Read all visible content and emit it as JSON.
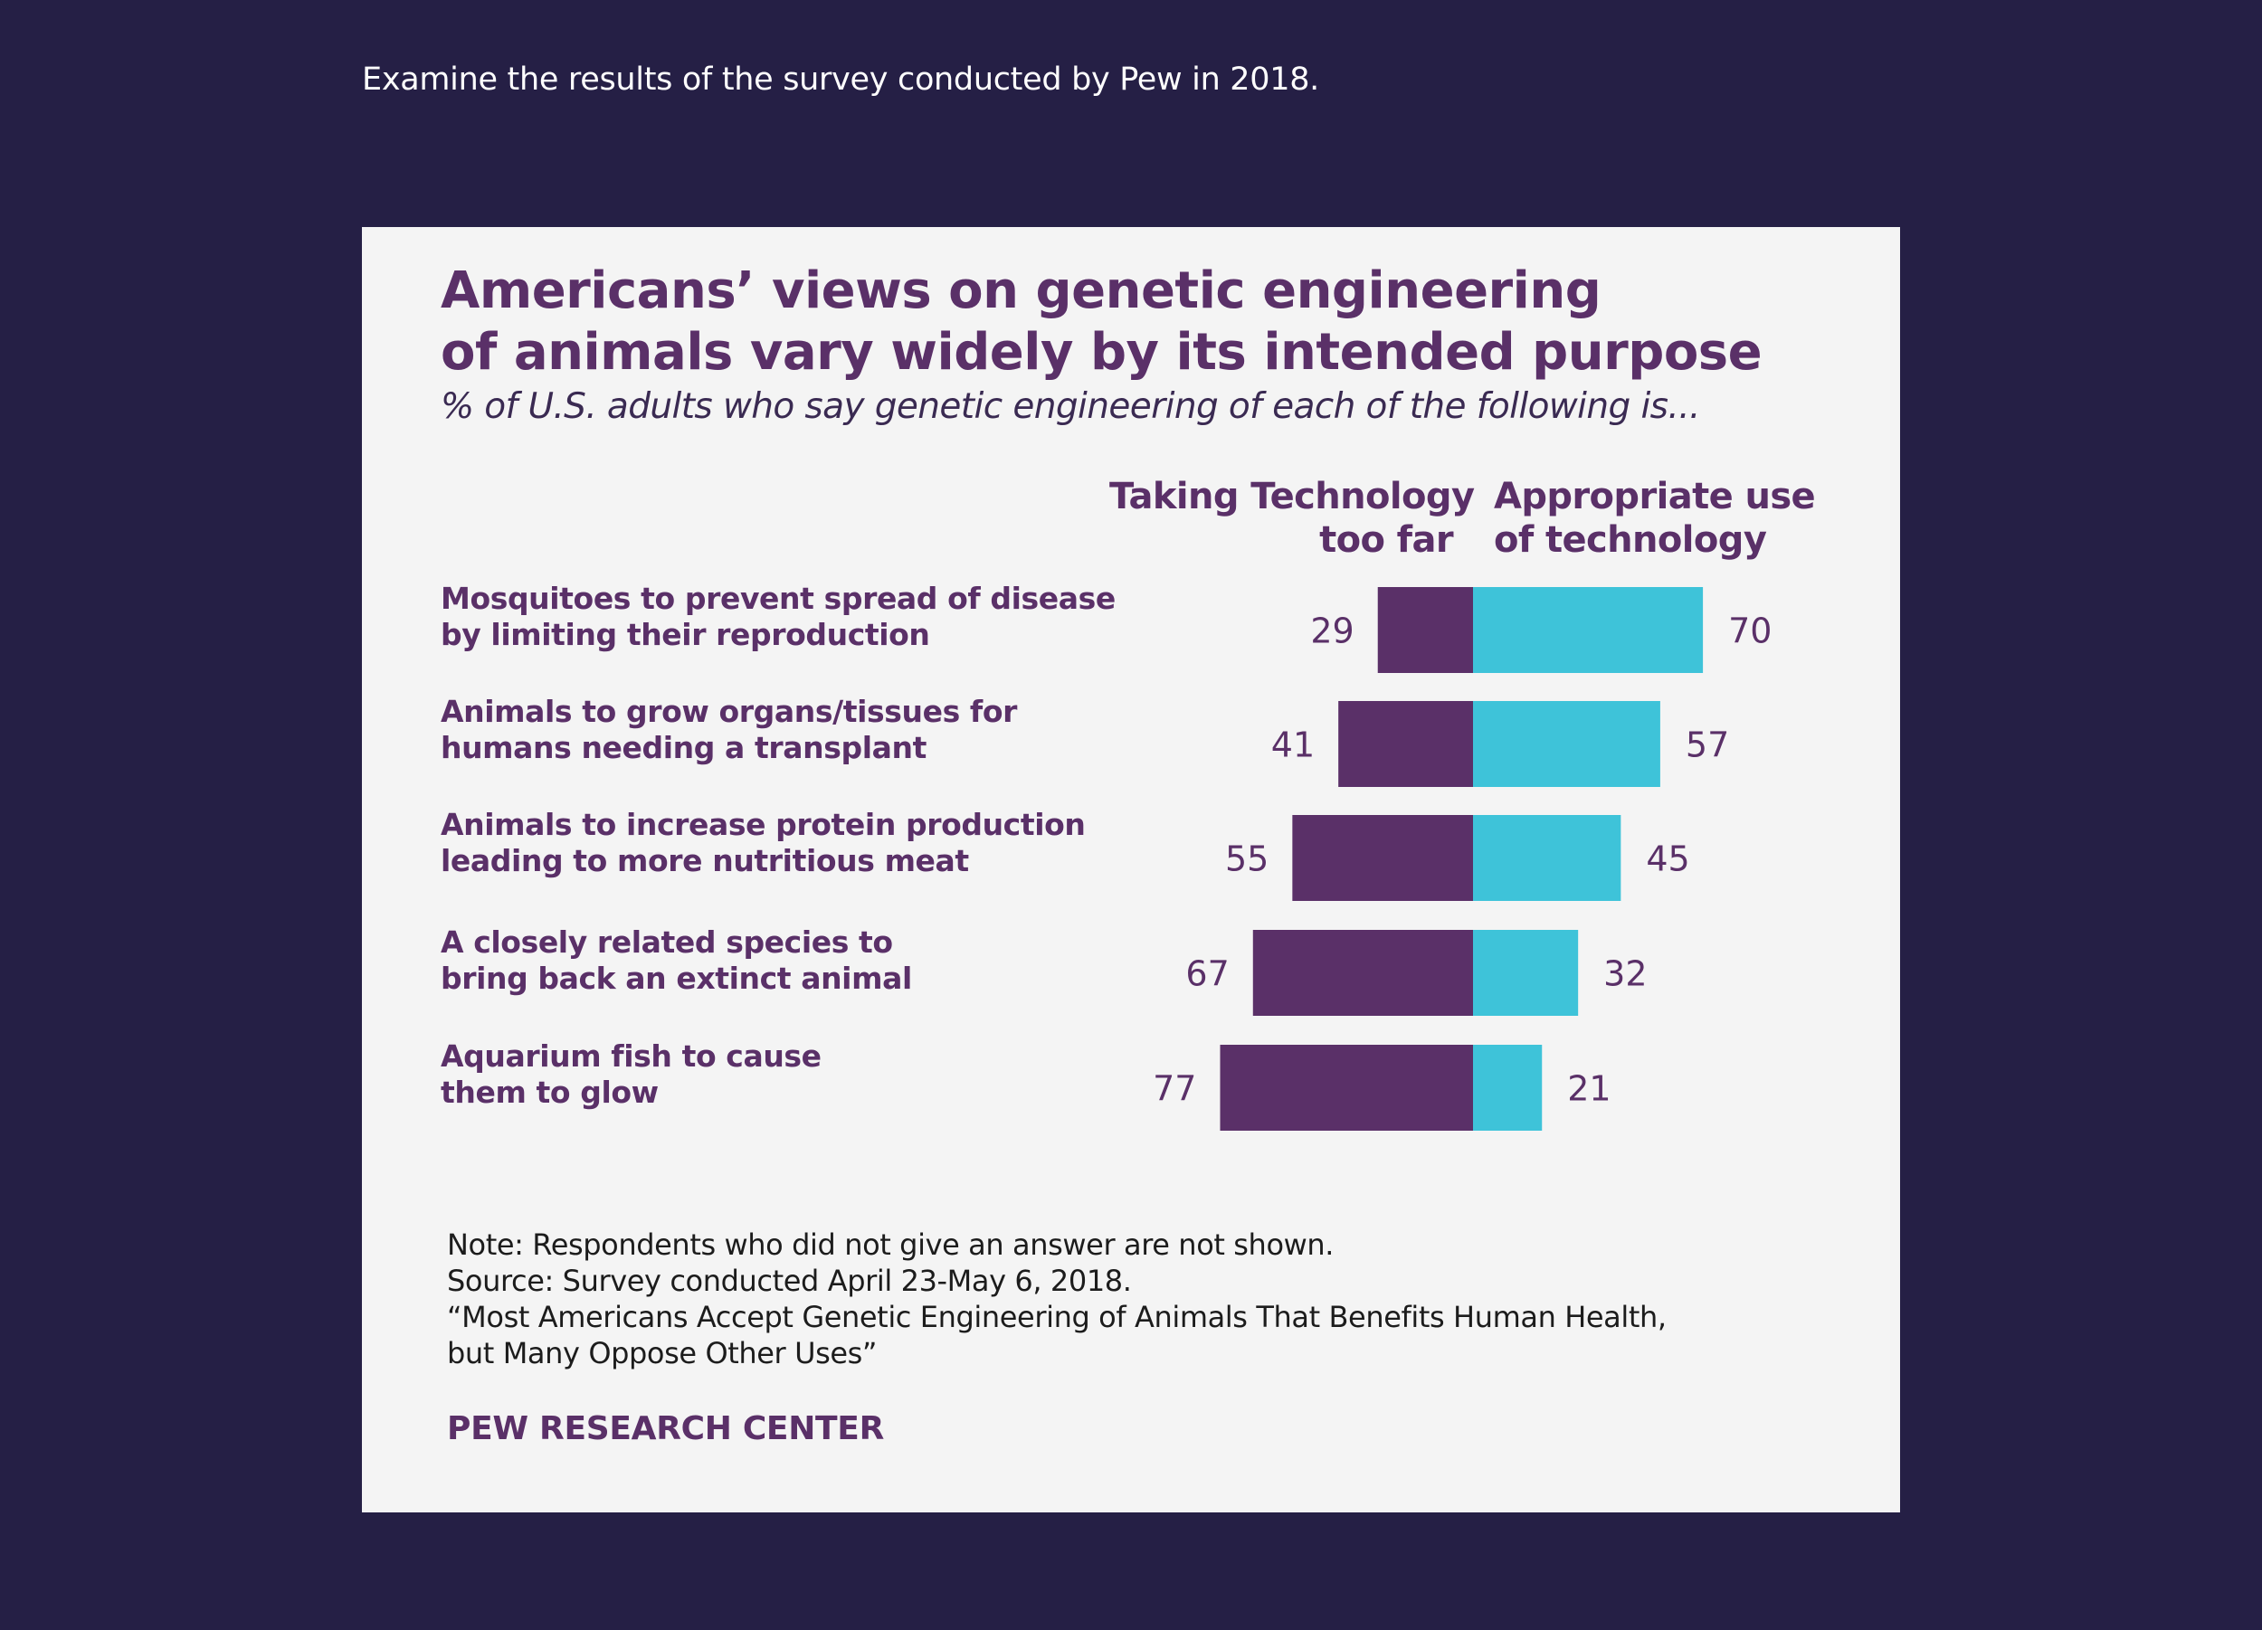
{
  "prompt": "Examine the results of the survey conducted by Pew in 2018.",
  "colors": {
    "page_bg": "#251f45",
    "card_bg": "#f4f4f4",
    "too_far": "#5a3068",
    "appropriate": "#3ec3d9",
    "text_purple": "#5a3068"
  },
  "chart_data": {
    "type": "bar",
    "orientation": "horizontal-diverging",
    "title_line1": "Americans’ views on genetic engineering",
    "title_line2": "of animals vary widely by its intended purpose",
    "subtitle": "% of U.S. adults who say genetic engineering of each of the following is...",
    "series": [
      {
        "name": "Taking Technology too far",
        "header_line1": "Taking Technology",
        "header_line2": "too far",
        "values": [
          29,
          41,
          55,
          67,
          77
        ]
      },
      {
        "name": "Appropriate use of technology",
        "header_line1": "Appropriate use",
        "header_line2": "of technology",
        "values": [
          70,
          57,
          45,
          32,
          21
        ]
      }
    ],
    "categories": [
      {
        "line1": "Mosquitoes to prevent spread of disease",
        "line2": "by limiting their reproduction"
      },
      {
        "line1": "Animals to grow organs/tissues for",
        "line2": "humans needing a transplant"
      },
      {
        "line1": "Animals to increase protein production",
        "line2": "leading to more nutritious meat"
      },
      {
        "line1": "A closely related species to",
        "line2": "bring back an extinct animal"
      },
      {
        "line1": "Aquarium fish to cause",
        "line2": "them to glow"
      }
    ],
    "xlim": [
      0,
      100
    ]
  },
  "footer": {
    "note": "Note: Respondents who did not give an answer are not shown.",
    "source": "Source: Survey conducted April 23-May 6, 2018.",
    "report_line1": "“Most Americans Accept Genetic Engineering of Animals That Benefits Human Health,",
    "report_line2": "but Many Oppose Other Uses”",
    "brand": "PEW RESEARCH CENTER"
  }
}
